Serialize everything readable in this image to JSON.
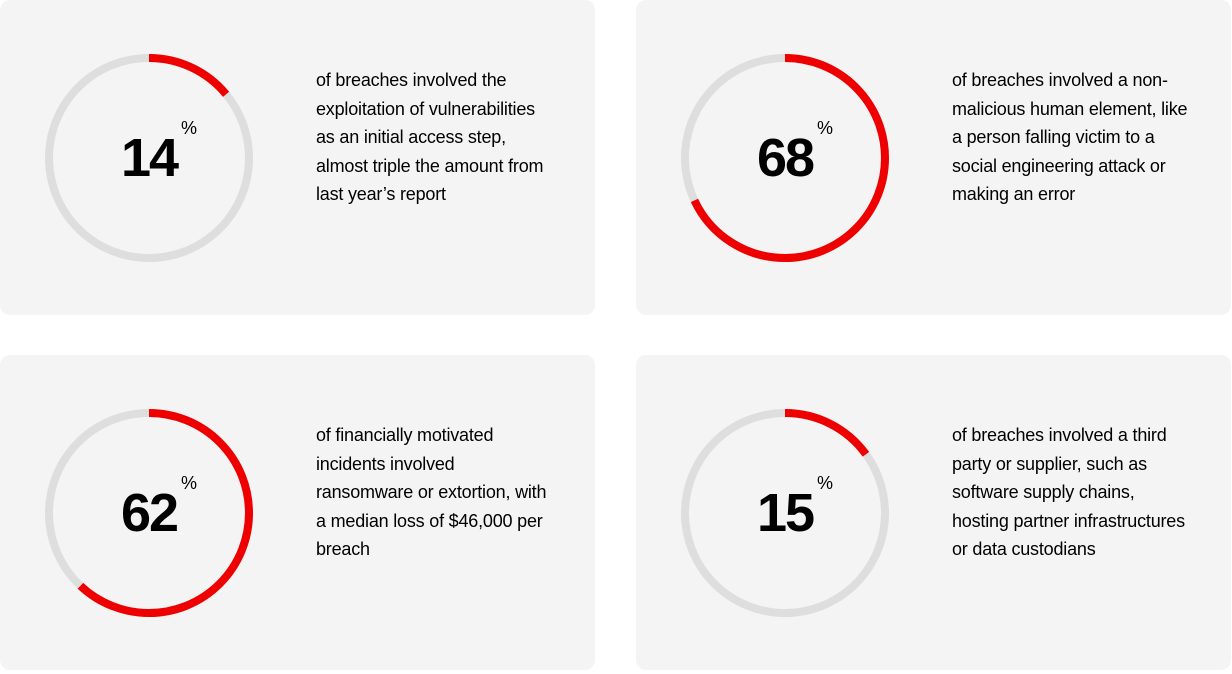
{
  "chart_data": [
    {
      "type": "pie",
      "value": 14,
      "max": 100,
      "unit": "%",
      "description": "of breaches involved the exploitation of vulnerabilities as an initial access step, almost triple the amount from last year’s report"
    },
    {
      "type": "pie",
      "value": 68,
      "max": 100,
      "unit": "%",
      "description": "of breaches involved a non-malicious human element, like a person falling victim to a social engineering attack or making an error"
    },
    {
      "type": "pie",
      "value": 62,
      "max": 100,
      "unit": "%",
      "description": "of financially motivated incidents involved ransomware or extortion, with a median loss of $46,000 per breach"
    },
    {
      "type": "pie",
      "value": 15,
      "max": 100,
      "unit": "%",
      "description": "of breaches involved a third party or supplier, such as software supply chains, hosting partner infrastructures or data custodians"
    }
  ],
  "colors": {
    "accent": "#ee0000",
    "track": "#dedede",
    "card": "#f4f4f4"
  }
}
